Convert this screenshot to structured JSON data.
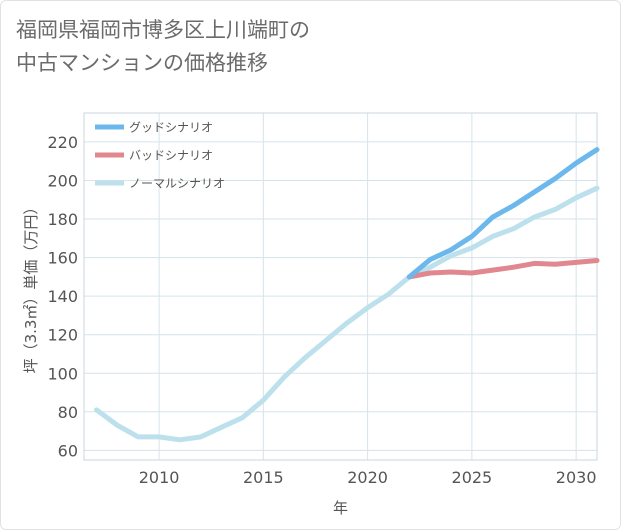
{
  "title_line1": "福岡県福岡市博多区上川端町の",
  "title_line2": "中古マンションの価格推移",
  "chart_data": {
    "type": "line",
    "title": "福岡県福岡市博多区上川端町の中古マンションの価格推移",
    "xlabel": "年",
    "ylabel": "坪（3.3㎡）単価（万円）",
    "xlim": [
      2006.4,
      2031
    ],
    "ylim": [
      55,
      235
    ],
    "xticks": [
      2010,
      2015,
      2020,
      2025,
      2030
    ],
    "yticks": [
      60,
      80,
      100,
      120,
      140,
      160,
      180,
      200,
      220
    ],
    "grid": true,
    "legend_position": "top-left",
    "series": [
      {
        "name": "グッドシナリオ",
        "color": "#6cb8ec",
        "x": [
          2022,
          2023,
          2024,
          2025,
          2026,
          2027,
          2028,
          2029,
          2030,
          2031
        ],
        "y": [
          150,
          159,
          164,
          171,
          181,
          187,
          194,
          201,
          209,
          216
        ]
      },
      {
        "name": "バッドシナリオ",
        "color": "#e0878f",
        "x": [
          2022,
          2023,
          2024,
          2025,
          2026,
          2027,
          2028,
          2029,
          2030,
          2031
        ],
        "y": [
          150,
          152,
          152.5,
          152,
          153.5,
          155,
          157,
          156.5,
          157.5,
          158.5
        ]
      },
      {
        "name": "ノーマルシナリオ",
        "color": "#bde0ed",
        "x": [
          2007,
          2008,
          2009,
          2010,
          2011,
          2012,
          2013,
          2014,
          2015,
          2016,
          2017,
          2018,
          2019,
          2020,
          2021,
          2022,
          2023,
          2024,
          2025,
          2026,
          2027,
          2028,
          2029,
          2030,
          2031
        ],
        "y": [
          81,
          73,
          67,
          67,
          65.5,
          67,
          72,
          77,
          86,
          98,
          108,
          117,
          126,
          134,
          141,
          150,
          155,
          161,
          165,
          171,
          175,
          181,
          185,
          191,
          196
        ]
      }
    ]
  }
}
